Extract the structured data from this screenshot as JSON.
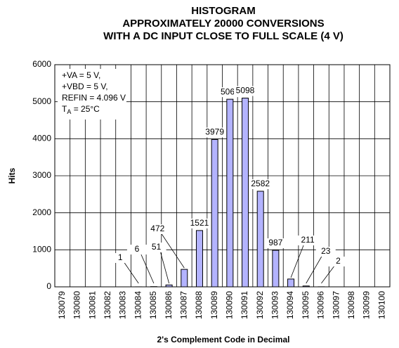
{
  "chart_data": {
    "type": "bar",
    "title": [
      "HISTOGRAM",
      "APPROXIMATELY 20000 CONVERSIONS",
      "WITH A DC INPUT CLOSE TO FULL SCALE (4 V)"
    ],
    "xlabel": "2's Complement Code in Decimal",
    "ylabel": "Hits",
    "annotations": [
      "+VA = 5 V,",
      "+VBD = 5 V,",
      "REFIN = 4.096 V"
    ],
    "annotation_temp": [
      "T",
      "A",
      " = 25°C"
    ],
    "categories": [
      "130079",
      "130080",
      "130081",
      "130082",
      "130083",
      "130084",
      "130085",
      "130086",
      "130087",
      "130088",
      "130089",
      "130090",
      "130091",
      "130092",
      "130093",
      "130094",
      "130095",
      "130096",
      "130097",
      "130098",
      "130099",
      "130100"
    ],
    "values": [
      0,
      0,
      0,
      0,
      0,
      1,
      6,
      51,
      472,
      1521,
      3979,
      5067,
      5098,
      2582,
      987,
      211,
      23,
      2,
      0,
      0,
      0,
      0
    ],
    "color": "#b3b3ff",
    "ylim": [
      0,
      6000
    ],
    "yticks": [
      0,
      1000,
      2000,
      3000,
      4000,
      5000,
      6000
    ],
    "grid": true
  }
}
